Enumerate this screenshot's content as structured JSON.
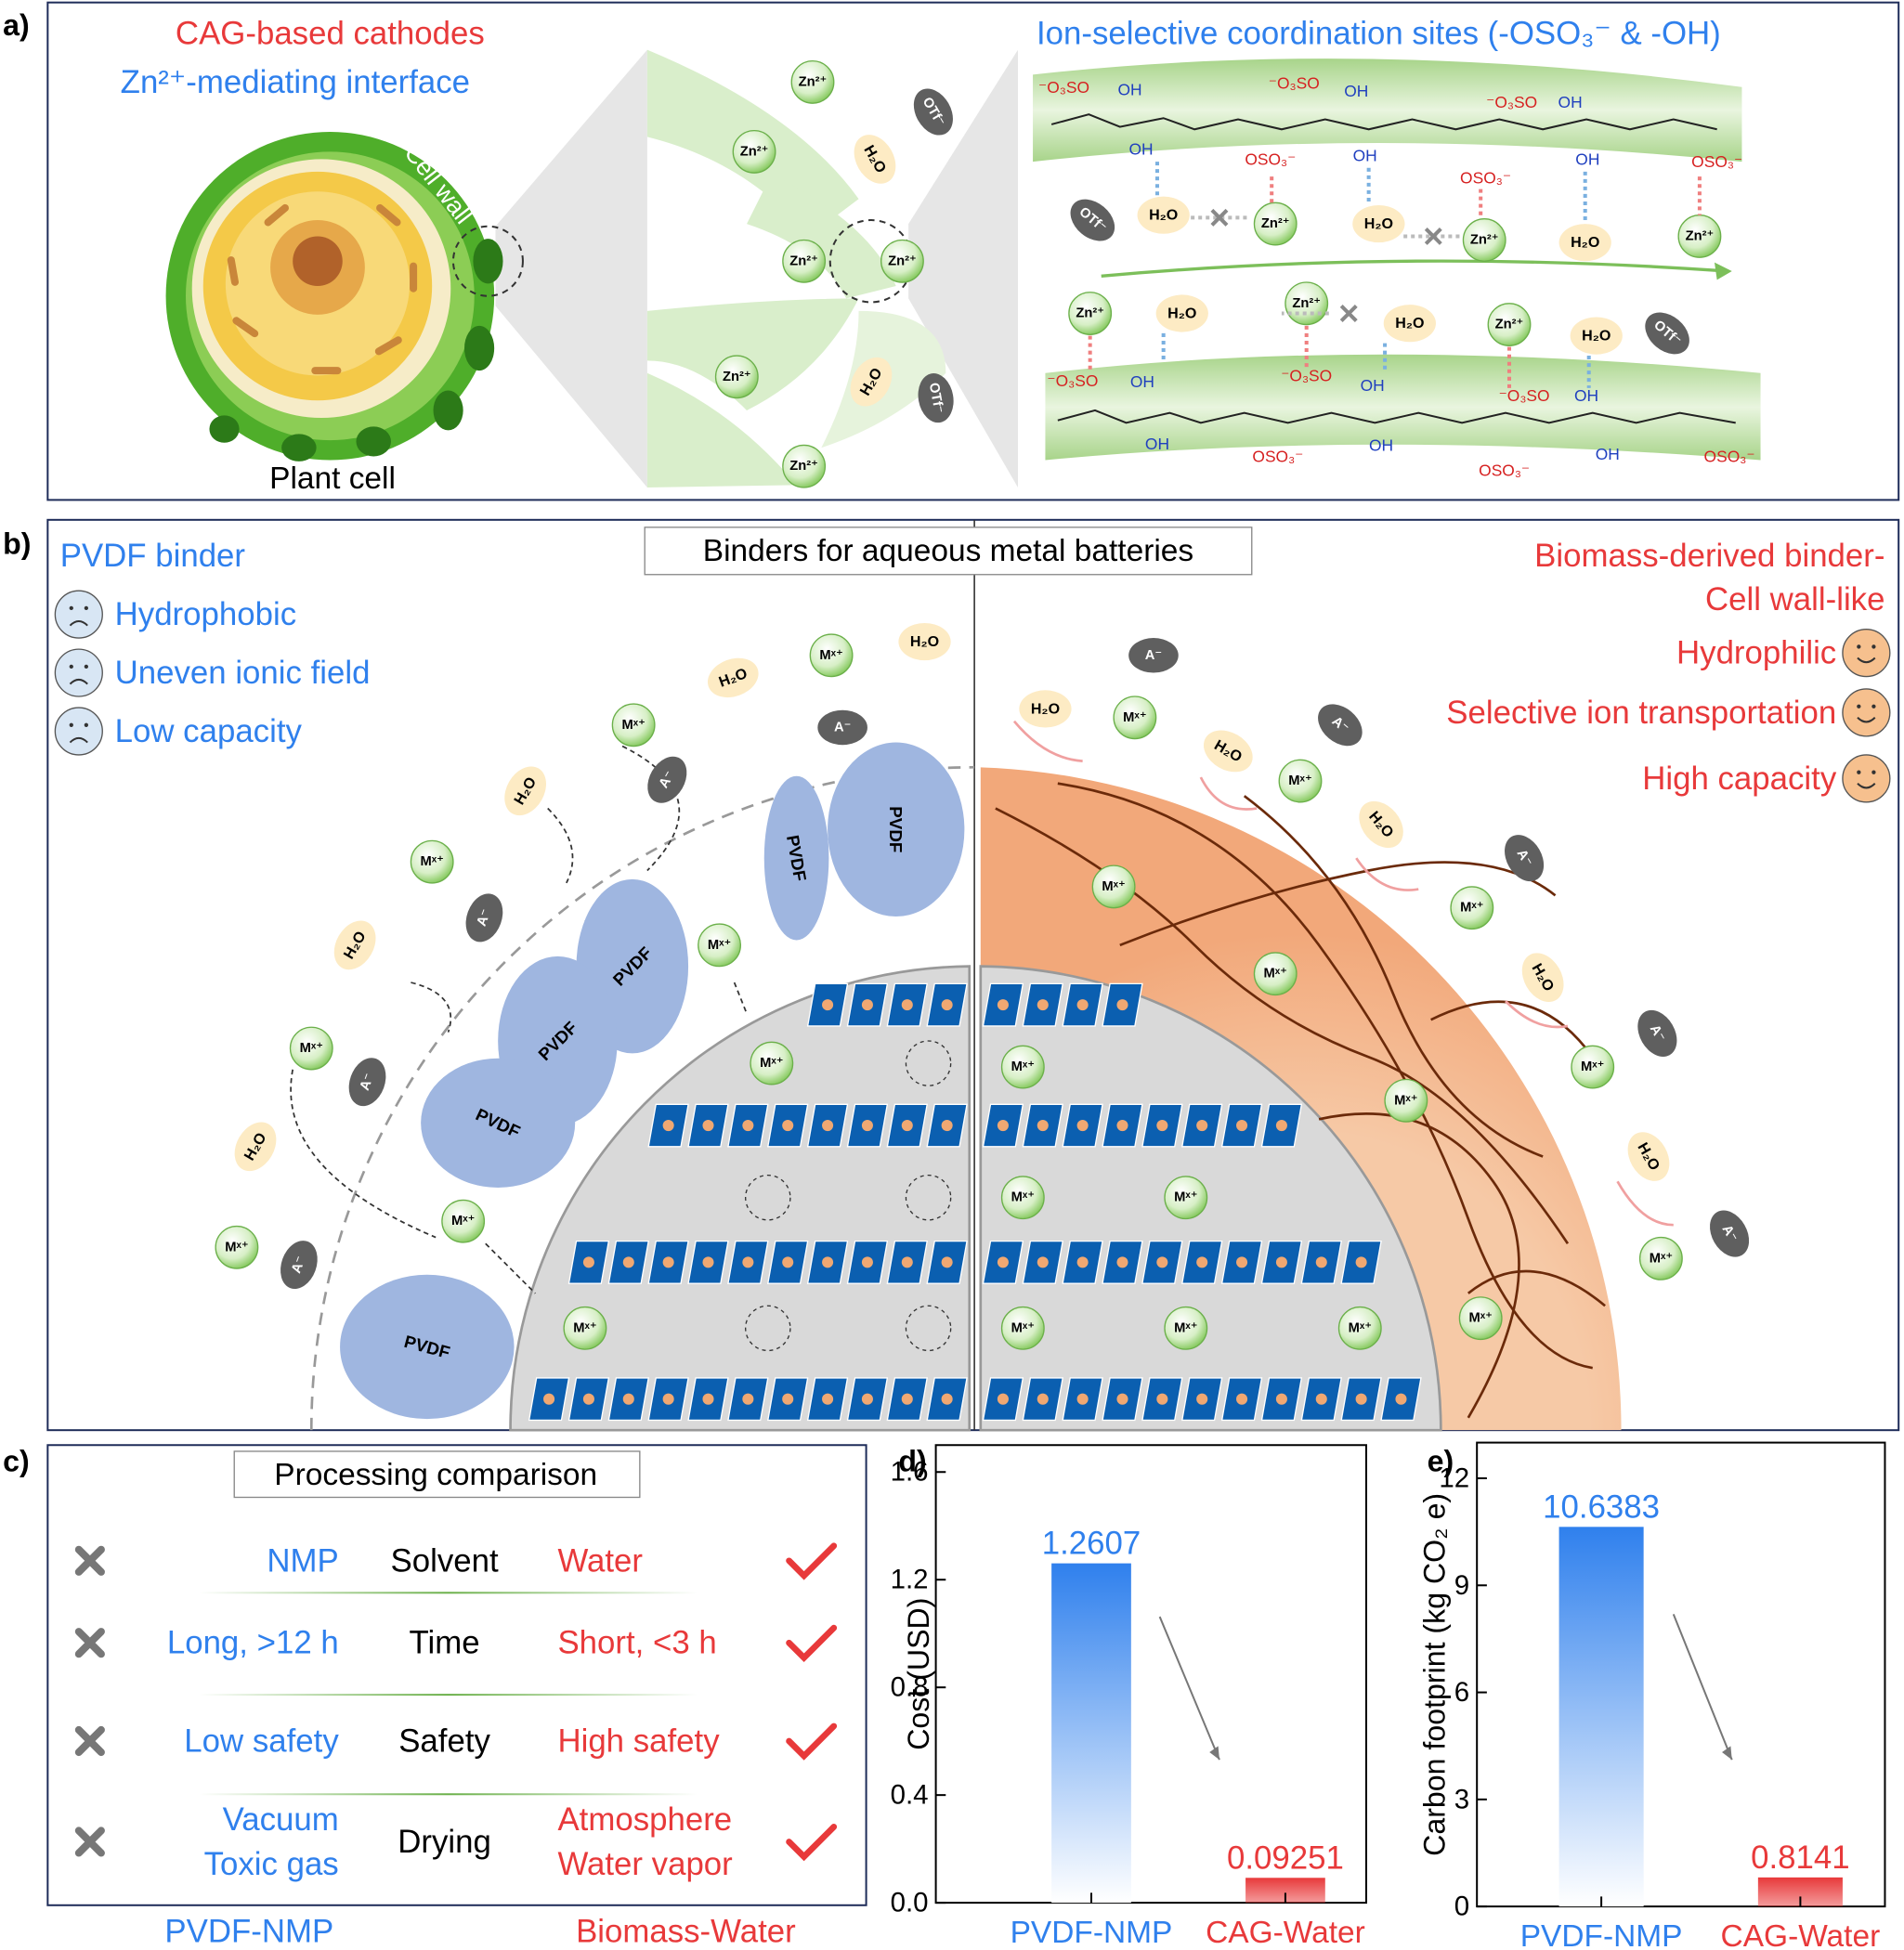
{
  "panel_a": {
    "label": "a)",
    "title_red": "CAG-based cathodes",
    "title_blue": "Zn²⁺-mediating interface",
    "cell_caption": "Plant cell",
    "cell_wall": "Cell wall",
    "sites_title": "Ion-selective coordination sites (-OSO₃⁻ & -OH)",
    "species": {
      "zn": "Zn²⁺",
      "h2o": "H₂O",
      "otf": "OTf⁻"
    },
    "groups": {
      "oh": "OH",
      "oso3_left": "⁻O₃SO",
      "oso3_right": "OSO₃⁻"
    }
  },
  "panel_b": {
    "label": "b)",
    "title": "Binders for aqueous metal batteries",
    "left_heading": "PVDF binder",
    "left_points": [
      "Hydrophobic",
      "Uneven ionic field",
      "Low capacity"
    ],
    "right_heading": [
      "Biomass-derived binder-",
      "Cell wall-like"
    ],
    "right_points": [
      "Hydrophilic",
      "Selective ion transportation",
      "High capacity"
    ],
    "species": {
      "m": "Mˣ⁺",
      "h2o": "H₂O",
      "anion": "A⁻",
      "pvdf": "PVDF"
    }
  },
  "panel_c": {
    "label": "c)",
    "title": "Processing comparison",
    "rows": [
      {
        "left": [
          "NMP"
        ],
        "center": "Solvent",
        "right": [
          "Water"
        ]
      },
      {
        "left": [
          "Long, >12 h"
        ],
        "center": "Time",
        "right": [
          "Short, <3 h"
        ]
      },
      {
        "left": [
          "Low safety"
        ],
        "center": "Safety",
        "right": [
          "High safety"
        ]
      },
      {
        "left": [
          "Vacuum",
          "Toxic gas"
        ],
        "center": "Drying",
        "right": [
          "Atmosphere",
          "Water vapor"
        ]
      }
    ],
    "footer": [
      "PVDF-NMP",
      "Biomass-Water"
    ]
  },
  "chart_data": [
    {
      "type": "bar",
      "panel_label": "d)",
      "ylabel": "Cost (USD)",
      "categories": [
        "PVDF-NMP",
        "CAG-Water"
      ],
      "values": [
        1.2607,
        0.09251
      ],
      "colors": [
        "#2f80ed",
        "#e8393a"
      ],
      "ylim": [
        0,
        1.7
      ],
      "yticks": [
        {
          "value": 0,
          "label": "0.0"
        },
        0.4,
        0.8,
        1.2,
        1.6
      ]
    },
    {
      "type": "bar",
      "panel_label": "e)",
      "ylabel": "Carbon footprint (kg CO₂ e)",
      "categories": [
        "PVDF-NMP",
        "CAG-Water"
      ],
      "values": [
        10.6383,
        0.8141
      ],
      "colors": [
        "#2f80ed",
        "#e8393a"
      ],
      "ylim": [
        0,
        13
      ],
      "yticks": [
        0,
        3,
        6,
        9,
        12
      ]
    }
  ]
}
